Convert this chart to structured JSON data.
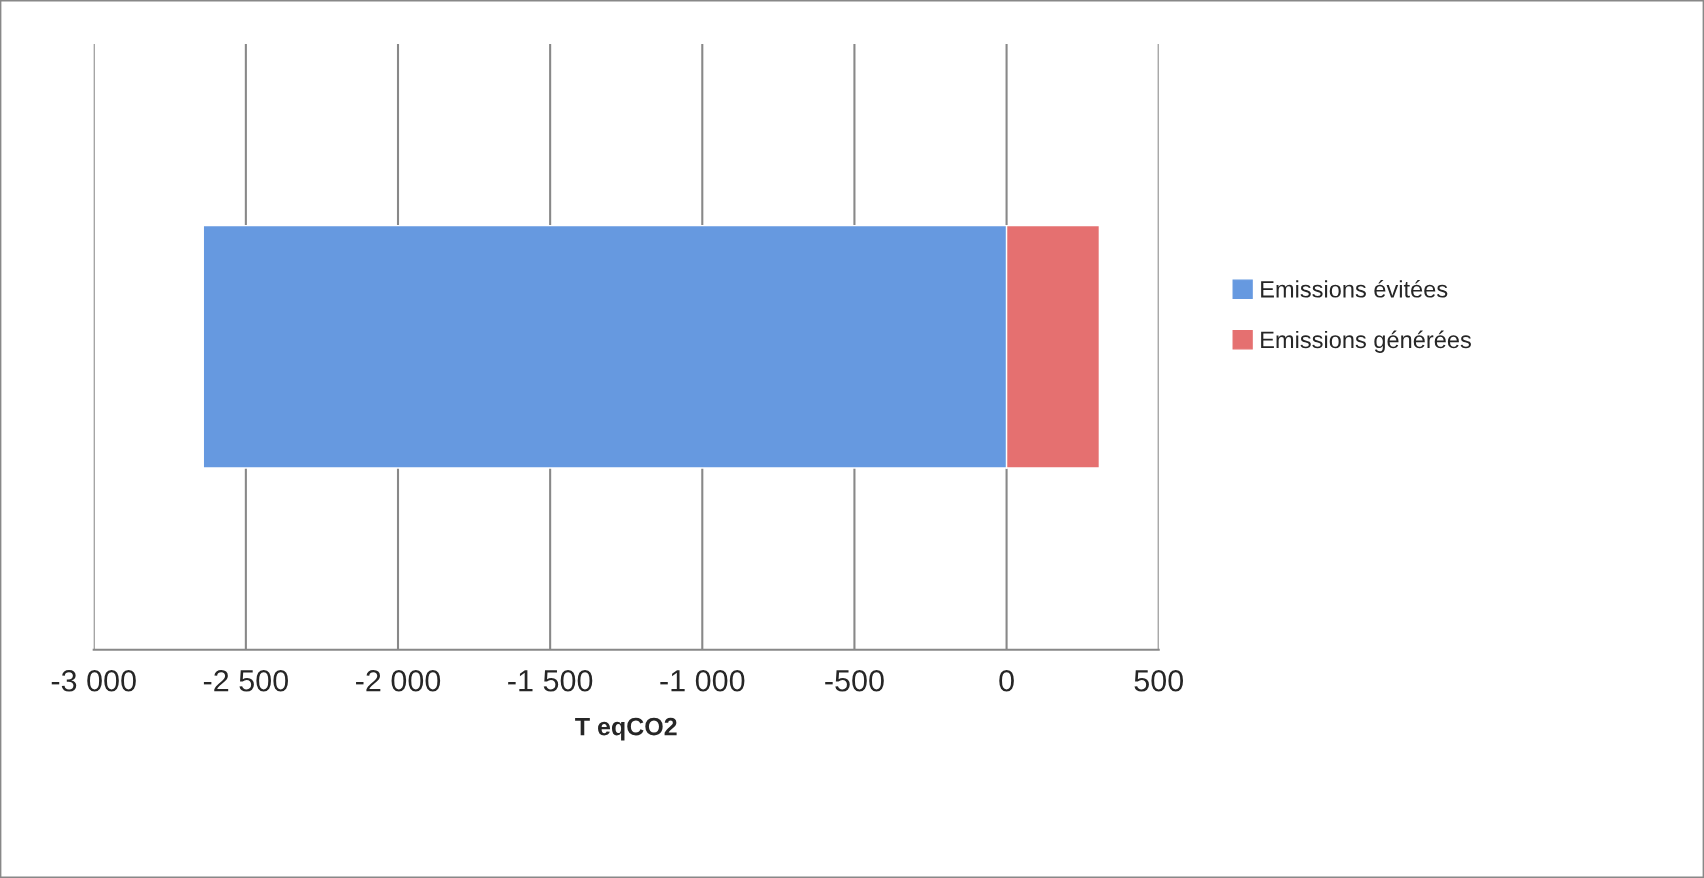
{
  "chart_data": {
    "type": "bar",
    "orientation": "horizontal",
    "stacked": true,
    "xlabel": "T eqCO2",
    "categories": [
      null
    ],
    "series": [
      {
        "name": "Emissions évitées",
        "color": "#6699e0",
        "values": [
          -2640
        ]
      },
      {
        "name": "Emissions générées",
        "color": "#e57070",
        "values": [
          305
        ]
      }
    ],
    "xlim": [
      -3000,
      500
    ],
    "xticks": [
      {
        "value": -3000,
        "label": "-3 000"
      },
      {
        "value": -2500,
        "label": "-2 500"
      },
      {
        "value": -2000,
        "label": "-2 000"
      },
      {
        "value": -1500,
        "label": "-1 500"
      },
      {
        "value": -1000,
        "label": "-1 000"
      },
      {
        "value": -500,
        "label": "-500"
      },
      {
        "value": 0,
        "label": "0"
      },
      {
        "value": 500,
        "label": "500"
      }
    ],
    "grid": "x",
    "legend": "right",
    "tick_labels": "x"
  }
}
